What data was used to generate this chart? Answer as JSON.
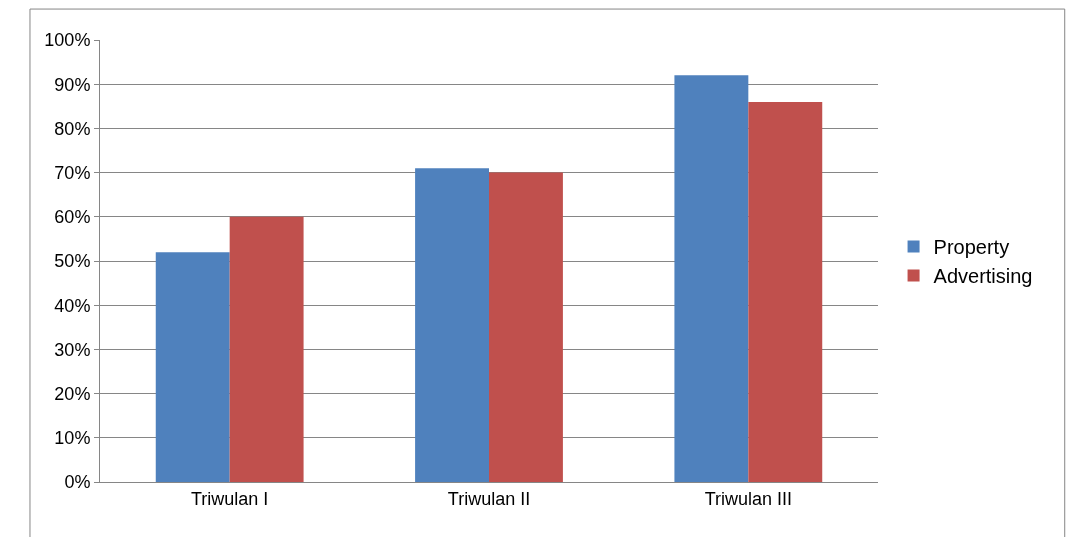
{
  "chart_data": {
    "type": "bar",
    "categories": [
      "Triwulan I",
      "Triwulan II",
      "Triwulan III"
    ],
    "series": [
      {
        "name": "Property",
        "color": "#4f81bd",
        "values": [
          52,
          71,
          92
        ]
      },
      {
        "name": "Advertising",
        "color": "#c0504d",
        "values": [
          60,
          70,
          86
        ]
      }
    ],
    "ylim": [
      0,
      100
    ],
    "yticks": [
      {
        "value": 0,
        "label": "0%"
      },
      {
        "value": 10,
        "label": "10%"
      },
      {
        "value": 20,
        "label": "20%"
      },
      {
        "value": 30,
        "label": "30%"
      },
      {
        "value": 40,
        "label": "40%"
      },
      {
        "value": 50,
        "label": "50%"
      },
      {
        "value": 60,
        "label": "60%"
      },
      {
        "value": 70,
        "label": "70%"
      },
      {
        "value": 80,
        "label": "80%"
      },
      {
        "value": 90,
        "label": "90%"
      },
      {
        "value": 100,
        "label": "100%"
      }
    ],
    "grid": "y",
    "legend": "right"
  }
}
